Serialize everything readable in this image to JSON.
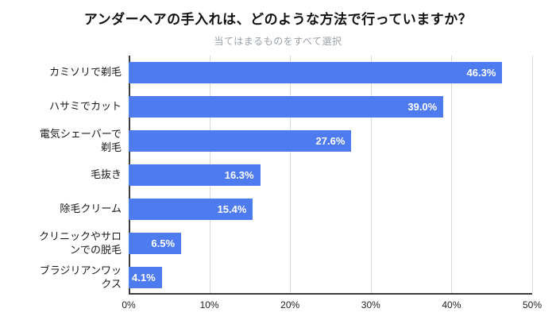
{
  "header": {
    "title": "アンダーヘアの手入れは、どのような方法で行っていますか？",
    "subtitle": "当てはまるものをすべて選択"
  },
  "chart_data": {
    "type": "bar",
    "orientation": "horizontal",
    "title": "アンダーヘアの手入れは、どのような方法で行っていますか？",
    "subtitle": "当てはまるものをすべて選択",
    "categories": [
      "カミソリで剃毛",
      "ハサミでカット",
      "電気シェーバーで剃毛",
      "毛抜き",
      "除毛クリーム",
      "クリニックやサロンでの脱毛",
      "ブラジリアンワックス"
    ],
    "display_labels": [
      [
        "カミソリで剃毛"
      ],
      [
        "ハサミでカット"
      ],
      [
        "電気シェーバーで",
        "剃毛"
      ],
      [
        "毛抜き"
      ],
      [
        "除毛クリーム"
      ],
      [
        "クリニックやサロ",
        "ンでの脱毛"
      ],
      [
        "ブラジリアンワッ",
        "クス"
      ]
    ],
    "values": [
      46.3,
      39.0,
      27.6,
      16.3,
      15.4,
      6.5,
      4.1
    ],
    "value_labels": [
      "46.3%",
      "39.0%",
      "27.6%",
      "16.3%",
      "15.4%",
      "6.5%",
      "4.1%"
    ],
    "xlim": [
      0,
      50
    ],
    "x_ticks": [
      "0%",
      "10%",
      "20%",
      "30%",
      "40%",
      "50%"
    ],
    "bar_color": "#4e7cf0",
    "grid": true,
    "legend": false
  }
}
